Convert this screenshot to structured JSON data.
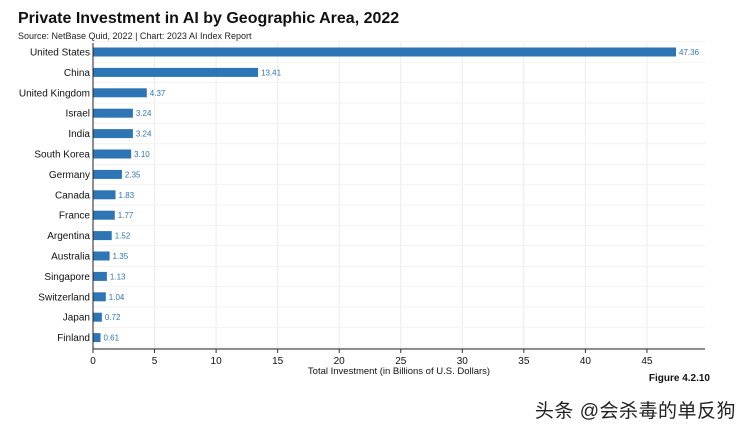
{
  "title": "Private Investment in AI by Geographic Area, 2022",
  "source": "Source: NetBase Quid, 2022 | Chart: 2023 AI Index Report",
  "figure_label": "Figure 4.2.10",
  "watermark": "头条 @会杀毒的单反狗",
  "chart_data": {
    "type": "bar",
    "orientation": "horizontal",
    "categories": [
      "United States",
      "China",
      "United Kingdom",
      "Israel",
      "India",
      "South Korea",
      "Germany",
      "Canada",
      "France",
      "Argentina",
      "Australia",
      "Singapore",
      "Switzerland",
      "Japan",
      "Finland"
    ],
    "values": [
      47.36,
      13.41,
      4.37,
      3.24,
      3.24,
      3.1,
      2.35,
      1.83,
      1.77,
      1.52,
      1.35,
      1.13,
      1.04,
      0.72,
      0.61
    ],
    "value_labels": [
      "47.36",
      "13.41",
      "4.37",
      "3.24",
      "3.24",
      "3.10",
      "2.35",
      "1.83",
      "1.77",
      "1.52",
      "1.35",
      "1.13",
      "1.04",
      "0.72",
      "0.61"
    ],
    "xlabel": "Total Investment (in Billions of U.S. Dollars)",
    "xlim": [
      0,
      49
    ],
    "xticks": [
      0,
      5,
      10,
      15,
      20,
      25,
      30,
      35,
      40,
      45
    ],
    "grid": true,
    "bar_color": "#2e75b6",
    "label_color": "#2e75b6"
  }
}
